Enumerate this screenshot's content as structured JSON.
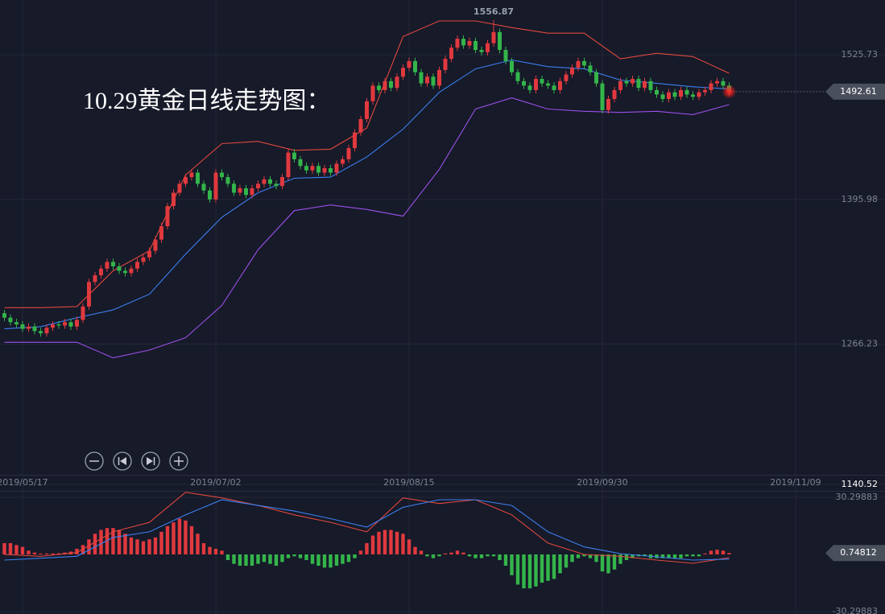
{
  "chart_data": [
    {
      "type": "candlestick",
      "title": "10.29黄金日线走势图：",
      "up_color": "#e0393e",
      "down_color": "#34b54a",
      "xlim": [
        -0.73,
        145.8
      ],
      "xticks": [
        {
          "value": 3,
          "label": "2019/05/17"
        },
        {
          "value": 35,
          "label": "2019/07/02"
        },
        {
          "value": 67,
          "label": "2019/08/15"
        },
        {
          "value": 99,
          "label": "2019/09/30"
        },
        {
          "value": 131,
          "label": "2019/11/09"
        }
      ],
      "ylim": [
        1140.52,
        1574.74
      ],
      "yticks": [
        1525.73,
        1395.98,
        1266.23,
        1140.52
      ],
      "grid": true,
      "candles": {
        "open": [
          1294,
          1290,
          1286,
          1284,
          1280,
          1282,
          1278,
          1276,
          1281,
          1284,
          1283,
          1286,
          1282,
          1288,
          1300,
          1322,
          1328,
          1334,
          1340,
          1336,
          1332,
          1330,
          1334,
          1340,
          1344,
          1350,
          1360,
          1372,
          1390,
          1402,
          1410,
          1416,
          1420,
          1410,
          1404,
          1396,
          1420,
          1416,
          1410,
          1402,
          1406,
          1400,
          1406,
          1410,
          1414,
          1410,
          1408,
          1416,
          1438,
          1432,
          1426,
          1422,
          1426,
          1420,
          1424,
          1420,
          1428,
          1432,
          1442,
          1456,
          1468,
          1484,
          1498,
          1494,
          1502,
          1496,
          1506,
          1514,
          1520,
          1510,
          1500,
          1506,
          1498,
          1512,
          1522,
          1532,
          1540,
          1534,
          1538,
          1530,
          1528,
          1536,
          1546,
          1530,
          1520,
          1510,
          1502,
          1498,
          1494,
          1504,
          1500,
          1498,
          1494,
          1502,
          1508,
          1514,
          1520,
          1516,
          1510,
          1500,
          1476,
          1486,
          1494,
          1502,
          1500,
          1504,
          1496,
          1502,
          1494,
          1490,
          1486,
          1492,
          1488,
          1494,
          1490,
          1488,
          1492,
          1494,
          1500,
          1502,
          1498
        ],
        "high": [
          1297,
          1293,
          1289,
          1287,
          1285,
          1285,
          1281,
          1284,
          1287,
          1287,
          1289,
          1289,
          1291,
          1303,
          1325,
          1331,
          1337,
          1343,
          1343,
          1339,
          1335,
          1337,
          1343,
          1347,
          1353,
          1363,
          1375,
          1393,
          1405,
          1413,
          1419,
          1423,
          1423,
          1413,
          1407,
          1423,
          1423,
          1419,
          1413,
          1409,
          1409,
          1409,
          1413,
          1417,
          1417,
          1413,
          1419,
          1441,
          1441,
          1435,
          1429,
          1429,
          1429,
          1427,
          1427,
          1431,
          1435,
          1445,
          1459,
          1471,
          1487,
          1501,
          1501,
          1505,
          1505,
          1509,
          1517,
          1523,
          1523,
          1513,
          1509,
          1509,
          1515,
          1525,
          1535,
          1543,
          1543,
          1541,
          1541,
          1533,
          1539,
          1556.87,
          1549,
          1533,
          1523,
          1513,
          1505,
          1501,
          1507,
          1507,
          1503,
          1501,
          1505,
          1511,
          1517,
          1523,
          1523,
          1519,
          1513,
          1503,
          1489,
          1497,
          1505,
          1505,
          1507,
          1507,
          1505,
          1505,
          1497,
          1493,
          1495,
          1495,
          1497,
          1497,
          1493,
          1495,
          1497,
          1503,
          1505,
          1505,
          1501
        ],
        "low": [
          1287,
          1283,
          1281,
          1277,
          1277,
          1275,
          1273,
          1273,
          1278,
          1280,
          1280,
          1279,
          1279,
          1285,
          1297,
          1319,
          1325,
          1331,
          1333,
          1329,
          1327,
          1327,
          1331,
          1337,
          1341,
          1347,
          1357,
          1369,
          1387,
          1399,
          1407,
          1413,
          1407,
          1401,
          1393,
          1393,
          1413,
          1407,
          1399,
          1399,
          1397,
          1397,
          1403,
          1407,
          1407,
          1405,
          1405,
          1413,
          1429,
          1423,
          1419,
          1419,
          1417,
          1417,
          1417,
          1417,
          1425,
          1429,
          1439,
          1453,
          1465,
          1481,
          1491,
          1491,
          1493,
          1493,
          1503,
          1511,
          1507,
          1497,
          1497,
          1495,
          1495,
          1509,
          1519,
          1529,
          1531,
          1531,
          1527,
          1525,
          1525,
          1533,
          1527,
          1517,
          1507,
          1499,
          1495,
          1491,
          1491,
          1497,
          1495,
          1491,
          1491,
          1499,
          1505,
          1511,
          1513,
          1507,
          1497,
          1473,
          1473,
          1483,
          1491,
          1497,
          1497,
          1493,
          1493,
          1491,
          1487,
          1483,
          1483,
          1485,
          1485,
          1487,
          1485,
          1485,
          1489,
          1491,
          1497,
          1495,
          1489
        ],
        "close": [
          1290,
          1286,
          1284,
          1280,
          1282,
          1278,
          1276,
          1281,
          1284,
          1283,
          1286,
          1282,
          1288,
          1300,
          1322,
          1328,
          1334,
          1340,
          1336,
          1332,
          1330,
          1334,
          1340,
          1344,
          1350,
          1360,
          1372,
          1390,
          1402,
          1410,
          1416,
          1420,
          1410,
          1404,
          1396,
          1420,
          1416,
          1410,
          1402,
          1406,
          1400,
          1406,
          1410,
          1414,
          1410,
          1408,
          1416,
          1438,
          1432,
          1426,
          1422,
          1426,
          1420,
          1424,
          1420,
          1428,
          1432,
          1442,
          1456,
          1468,
          1484,
          1498,
          1494,
          1502,
          1496,
          1506,
          1514,
          1520,
          1510,
          1500,
          1506,
          1498,
          1512,
          1522,
          1532,
          1540,
          1534,
          1538,
          1530,
          1528,
          1536,
          1546,
          1530,
          1520,
          1510,
          1502,
          1498,
          1494,
          1504,
          1500,
          1498,
          1494,
          1502,
          1508,
          1514,
          1520,
          1516,
          1510,
          1500,
          1476,
          1486,
          1494,
          1502,
          1500,
          1504,
          1496,
          1502,
          1494,
          1490,
          1486,
          1492,
          1488,
          1494,
          1490,
          1488,
          1492,
          1494,
          1500,
          1502,
          1498,
          1492.61
        ]
      },
      "overlays": [
        {
          "color": "#e0483e",
          "x": [
            0,
            6,
            12,
            18,
            24,
            30,
            36,
            42,
            48,
            54,
            60,
            66,
            72,
            78,
            84,
            90,
            96,
            102,
            108,
            114,
            120
          ],
          "values": [
            1299,
            1299,
            1300,
            1332,
            1350,
            1418,
            1446,
            1448,
            1440,
            1441,
            1460,
            1542,
            1556,
            1556,
            1550,
            1545,
            1545,
            1522,
            1527,
            1524,
            1509
          ]
        },
        {
          "color": "#3d7ff0",
          "x": [
            0,
            6,
            12,
            18,
            24,
            30,
            36,
            42,
            48,
            54,
            60,
            66,
            72,
            78,
            84,
            90,
            96,
            102,
            108,
            114,
            120
          ],
          "values": [
            1280,
            1282,
            1290,
            1297,
            1311,
            1347,
            1380,
            1402,
            1415,
            1416,
            1434,
            1459,
            1492,
            1513,
            1521,
            1515,
            1513,
            1503,
            1500,
            1497,
            1495
          ]
        },
        {
          "color": "#9b4fe8",
          "x": [
            0,
            6,
            12,
            18,
            24,
            30,
            36,
            42,
            48,
            54,
            60,
            66,
            72,
            78,
            84,
            90,
            96,
            102,
            108,
            114,
            120
          ],
          "values": [
            1268,
            1268,
            1268,
            1254,
            1261,
            1272,
            1301,
            1351,
            1386,
            1391,
            1387,
            1381,
            1423,
            1477,
            1487,
            1477,
            1475,
            1474,
            1475,
            1472,
            1481
          ]
        }
      ]
    },
    {
      "type": "macd",
      "up_color": "#e0393e",
      "down_color": "#34b54a",
      "ylim": [
        -31.6,
        36.7
      ],
      "yticks": [
        30.29883,
        -30.29883
      ],
      "histogram": [
        6,
        6,
        5,
        4,
        2,
        1,
        0.5,
        0.5,
        0.5,
        0.6,
        1,
        1.5,
        3,
        5,
        8,
        11,
        13,
        14,
        14,
        13,
        11,
        9,
        8,
        7,
        8,
        9,
        12,
        15,
        17,
        19,
        18,
        15,
        11,
        6,
        4,
        3,
        2,
        -3,
        -5,
        -6,
        -6,
        -6,
        -5,
        -4,
        -5,
        -6,
        -4,
        -2,
        -1,
        -2,
        -3,
        -5,
        -6,
        -7,
        -7,
        -6,
        -5,
        -4,
        -2,
        2,
        6,
        10,
        12,
        13,
        13,
        12,
        11,
        8,
        4,
        2,
        -1,
        -2,
        -1,
        0.5,
        1,
        2,
        1,
        -1,
        -2,
        -2,
        -1,
        -1,
        -3,
        -6,
        -11,
        -16,
        -18,
        -18,
        -17,
        -15,
        -14,
        -13,
        -10,
        -7,
        -4,
        -2,
        -1,
        -2,
        -4,
        -9,
        -10,
        -8,
        -5,
        -3,
        -2,
        -1,
        -1,
        -2,
        -2,
        -2,
        -2,
        -2,
        -2,
        -1,
        -1,
        -1,
        0.5,
        2,
        2.5,
        2,
        0.74812
      ],
      "lines": [
        {
          "color": "#e0483e",
          "x": [
            0,
            6,
            12,
            18,
            24,
            30,
            36,
            42,
            48,
            54,
            60,
            66,
            72,
            78,
            84,
            90,
            96,
            102,
            108,
            114,
            120
          ],
          "values": [
            0,
            -1,
            1,
            12,
            17,
            33,
            30,
            26,
            21,
            17,
            12,
            30,
            27,
            29,
            21,
            6,
            0,
            -1,
            -3,
            -4.7,
            -1.7
          ]
        },
        {
          "color": "#3d7ff0",
          "x": [
            0,
            6,
            12,
            18,
            24,
            30,
            36,
            42,
            48,
            54,
            60,
            66,
            72,
            78,
            84,
            90,
            96,
            102,
            108,
            114,
            120
          ],
          "values": [
            -3,
            -2,
            -1,
            9,
            12,
            21,
            29,
            26,
            23,
            19,
            14.5,
            25,
            29,
            29,
            26,
            12,
            4,
            0.4,
            -1.3,
            -3,
            -2.5
          ]
        }
      ]
    }
  ]
}
